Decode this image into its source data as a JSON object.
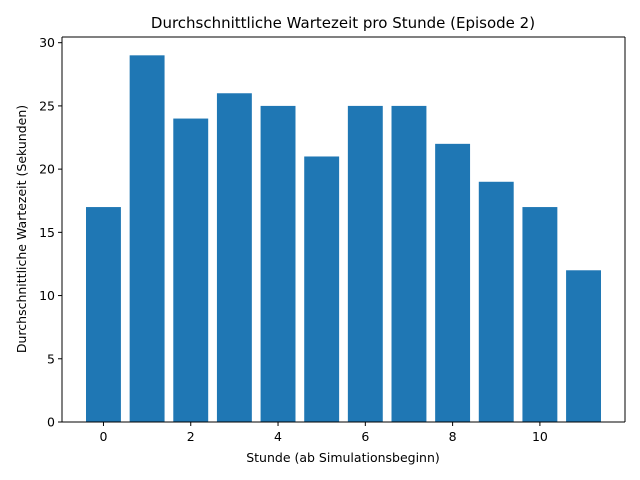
{
  "chart_data": {
    "type": "bar",
    "title": "Durchschnittliche Wartezeit pro Stunde (Episode 2)",
    "xlabel": "Stunde (ab Simulationsbeginn)",
    "ylabel": "Durchschnittliche Wartezeit (Sekunden)",
    "x": [
      0,
      1,
      2,
      3,
      4,
      5,
      6,
      7,
      8,
      9,
      10,
      11
    ],
    "values": [
      17,
      29,
      24,
      26,
      25,
      21,
      25,
      25,
      22,
      19,
      17,
      12
    ],
    "xlim": [
      -0.95,
      11.95
    ],
    "ylim": [
      0,
      30.45
    ],
    "xticks": [
      0,
      2,
      4,
      6,
      8,
      10
    ],
    "yticks": [
      0,
      5,
      10,
      15,
      20,
      25,
      30
    ],
    "bar_color": "#1f77b4",
    "grid": false,
    "legend": "none"
  }
}
